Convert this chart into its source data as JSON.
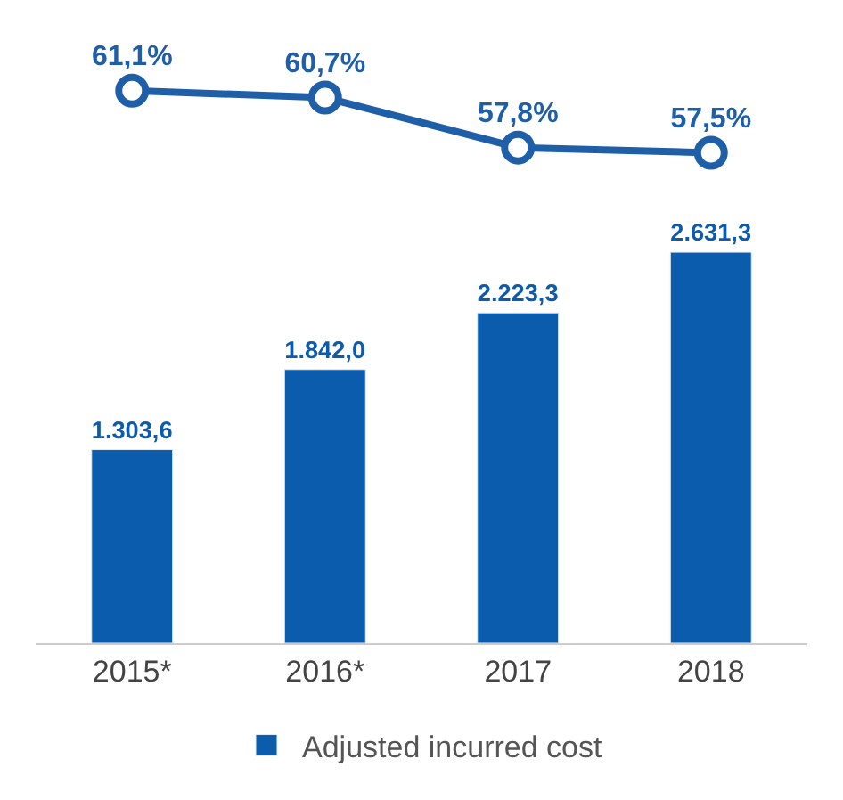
{
  "chart_data": [
    {
      "type": "line",
      "categories": [
        "2015*",
        "2016*",
        "2017",
        "2018"
      ],
      "tick_labels": false,
      "color": "#1f5fa8",
      "marker": "circle",
      "line_style": "solid",
      "values": [
        61.1,
        60.7,
        57.8,
        57.5
      ],
      "value_labels": [
        "61,1%",
        "60,7%",
        "57,8%",
        "57,5%"
      ]
    },
    {
      "type": "bar",
      "categories": [
        "2015*",
        "2016*",
        "2017",
        "2018"
      ],
      "tick_labels": "x",
      "legend": "bottom",
      "series": [
        {
          "name": "Adjusted incurred cost",
          "color": "#0b5cad",
          "values": [
            1303.6,
            1842.0,
            2223.3,
            2631.3
          ],
          "value_labels": [
            "1.303,6",
            "1.842,0",
            "2.223,3",
            "2.631,3"
          ]
        }
      ]
    }
  ]
}
